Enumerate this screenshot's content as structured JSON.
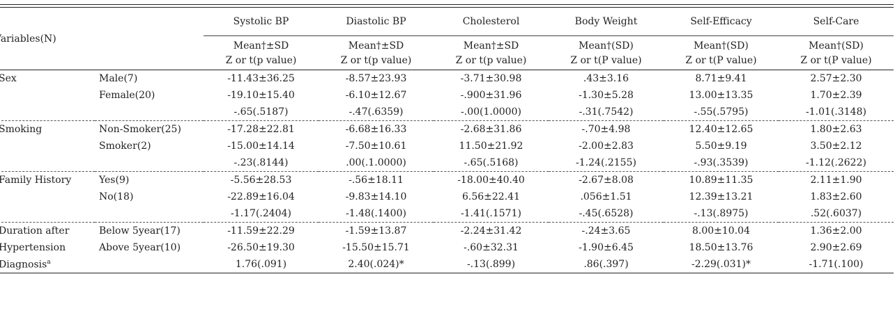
{
  "header": {
    "variables_label": "Variables(N)",
    "columns": [
      {
        "name": "Systolic BP",
        "stat": "Mean†±SD",
        "test": "Z or t(p value)"
      },
      {
        "name": "Diastolic BP",
        "stat": "Mean†±SD",
        "test": "Z or t(p value)"
      },
      {
        "name": "Cholesterol",
        "stat": "Mean†±SD",
        "test": "Z or t(p value)"
      },
      {
        "name": "Body Weight",
        "stat": "Mean†(SD)",
        "test": "Z or t(P value)"
      },
      {
        "name": "Self-Efficacy",
        "stat": "Mean†(SD)",
        "test": "Z or t(P value)"
      },
      {
        "name": "Self-Care",
        "stat": "Mean†(SD)",
        "test": "Z or t(P value)"
      }
    ]
  },
  "groups": [
    {
      "variable": [
        "Sex"
      ],
      "rows": [
        {
          "category": "Male(7)",
          "values": [
            "-11.43±36.25",
            "-8.57±23.93",
            "-3.71±30.98",
            ".43±3.16",
            "8.71±9.41",
            "2.57±2.30"
          ]
        },
        {
          "category": "Female(20)",
          "values": [
            "-19.10±15.40",
            "-6.10±12.67",
            "-.900±31.96",
            "-1.30±5.28",
            "13.00±13.35",
            "1.70±2.39"
          ]
        },
        {
          "category": "",
          "values": [
            "-.65(.5187)",
            "-.47(.6359)",
            "-.00(1.0000)",
            "-.31(.7542)",
            "-.55(.5795)",
            "-1.01(.3148)"
          ]
        }
      ]
    },
    {
      "variable": [
        "Smoking"
      ],
      "rows": [
        {
          "category": "Non-Smoker(25)",
          "values": [
            "-17.28±22.81",
            "-6.68±16.33",
            "-2.68±31.86",
            "-.70±4.98",
            "12.40±12.65",
            "1.80±2.63"
          ]
        },
        {
          "category": "Smoker(2)",
          "values": [
            "-15.00±14.14",
            "-7.50±10.61",
            "11.50±21.92",
            "-2.00±2.83",
            "5.50±9.19",
            "3.50±2.12"
          ]
        },
        {
          "category": "",
          "values": [
            "-.23(.8144)",
            ".00(.1.0000)",
            "-.65(.5168)",
            "-1.24(.2155)",
            "-.93(.3539)",
            "-1.12(.2622)"
          ]
        }
      ]
    },
    {
      "variable": [
        "Family History"
      ],
      "rows": [
        {
          "category": "Yes(9)",
          "values": [
            "-5.56±28.53",
            "-.56±18.11",
            "-18.00±40.40",
            "-2.67±8.08",
            "10.89±11.35",
            "2.11±1.90"
          ]
        },
        {
          "category": "No(18)",
          "values": [
            "-22.89±16.04",
            "-9.83±14.10",
            "6.56±22.41",
            ".056±1.51",
            "12.39±13.21",
            "1.83±2.60"
          ]
        },
        {
          "category": "",
          "values": [
            "-1.17(.2404)",
            "-1.48(.1400)",
            "-1.41(.1571)",
            "-.45(.6528)",
            "-.13(.8975)",
            ".52(.6037)"
          ]
        }
      ]
    },
    {
      "variable": [
        "Duration after",
        "Hypertension",
        "Diagnosis"
      ],
      "variable_note": "a",
      "rows": [
        {
          "category": "Below 5year(17)",
          "values": [
            "-11.59±22.29",
            "-1.59±13.87",
            "-2.24±31.42",
            "-.24±3.65",
            "8.00±10.04",
            "1.36±2.00"
          ]
        },
        {
          "category": "Above 5year(10)",
          "values": [
            "-26.50±19.30",
            "-15.50±15.71",
            "-.60±32.31",
            "-1.90±6.45",
            "18.50±13.76",
            "2.90±2.69"
          ]
        },
        {
          "category": "",
          "values": [
            "1.76(.091)",
            "2.40(.024)*",
            "-.13(.899)",
            ".86(.397)",
            "-2.29(.031)*",
            "-1.71(.100)"
          ]
        }
      ]
    }
  ]
}
